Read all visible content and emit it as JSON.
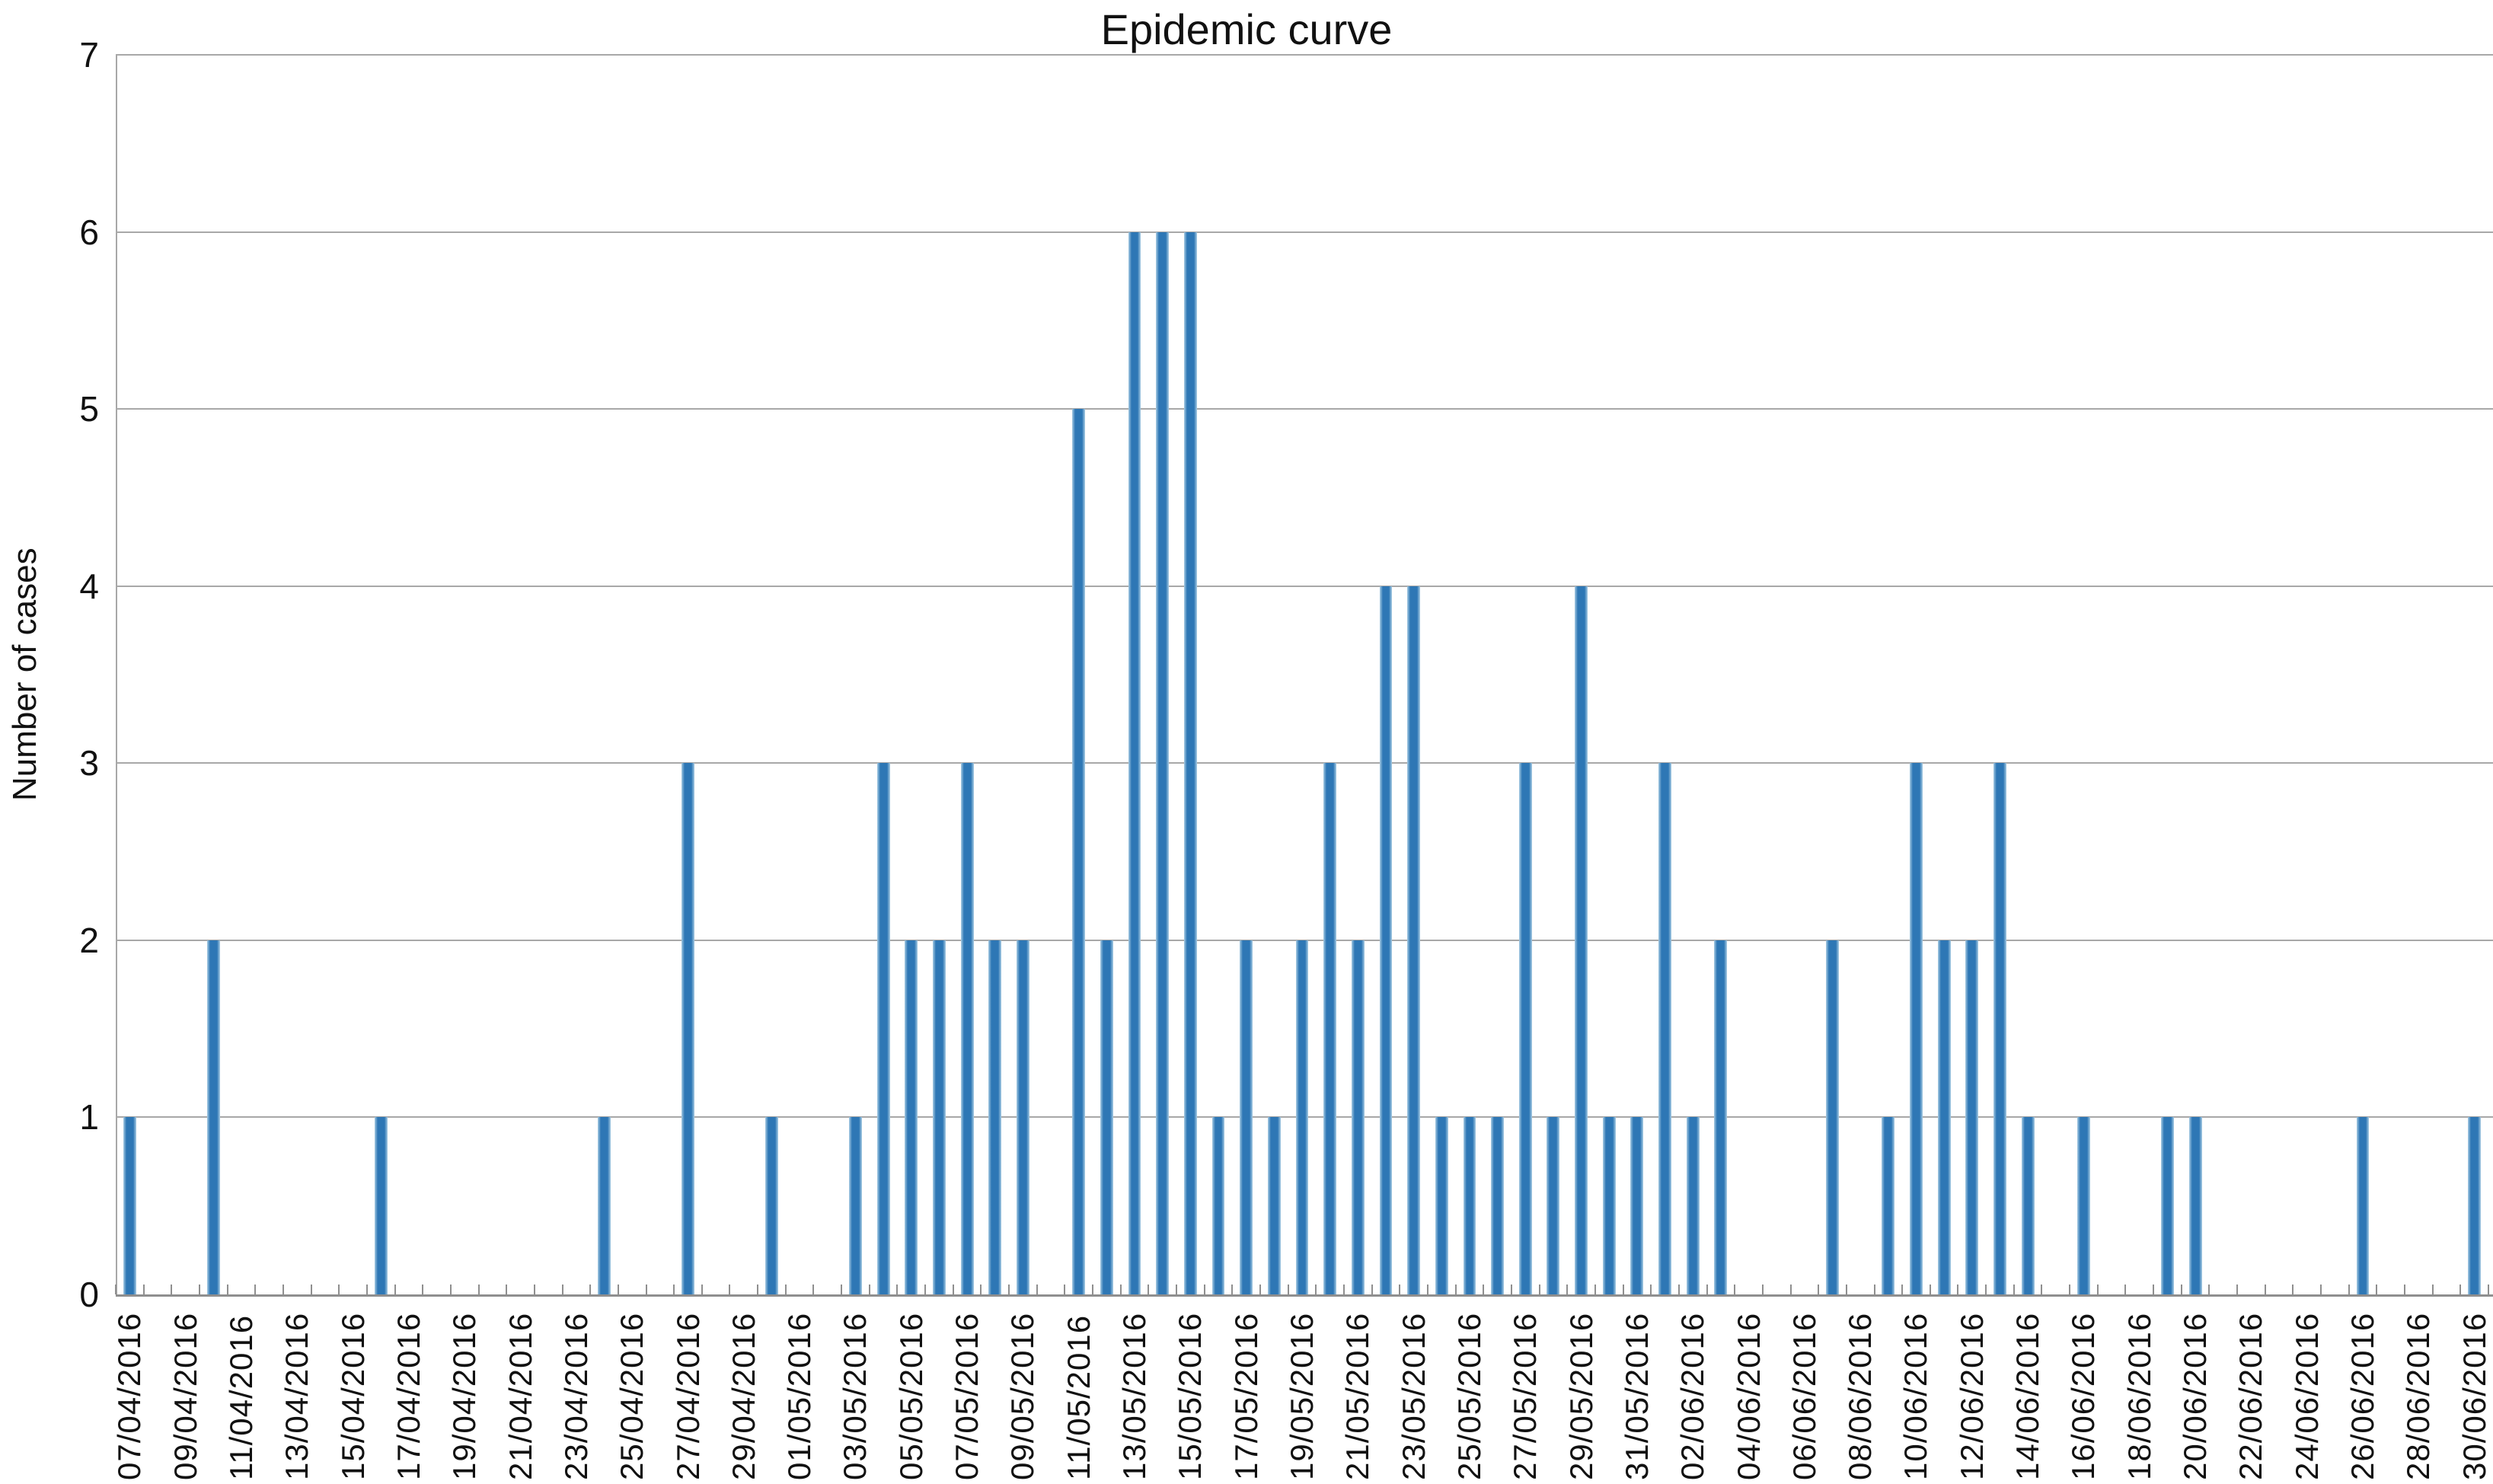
{
  "chart_data": {
    "type": "bar",
    "title": "Epidemic curve",
    "xlabel": "",
    "ylabel": "Number of cases",
    "ylim": [
      0,
      7
    ],
    "yticks": [
      0,
      1,
      2,
      3,
      4,
      5,
      6,
      7
    ],
    "grid": "horizontal",
    "legend": "none",
    "bar_color": "#2e77b5",
    "bar_edge_color": "#a8cce4",
    "gridline_color": "#a8a8a8",
    "axis_color": "#8f8f8f",
    "x_axis": {
      "start": "07/04/2016",
      "end": "30/06/2016",
      "step_days": 1,
      "label_every_days": 2,
      "total_slots": 85
    },
    "xticklabels": [
      "07/04/2016",
      "09/04/2016",
      "11/04/2016",
      "13/04/2016",
      "15/04/2016",
      "17/04/2016",
      "19/04/2016",
      "21/04/2016",
      "23/04/2016",
      "25/04/2016",
      "27/04/2016",
      "29/04/2016",
      "01/05/2016",
      "03/05/2016",
      "05/05/2016",
      "07/05/2016",
      "09/05/2016",
      "11/05/2016",
      "13/05/2016",
      "15/05/2016",
      "17/05/2016",
      "19/05/2016",
      "21/05/2016",
      "23/05/2016",
      "25/05/2016",
      "27/05/2016",
      "29/05/2016",
      "31/05/2016",
      "02/06/2016",
      "04/06/2016",
      "06/06/2016",
      "08/06/2016",
      "10/06/2016",
      "12/06/2016",
      "14/06/2016",
      "16/06/2016",
      "18/06/2016",
      "20/06/2016",
      "22/06/2016",
      "24/06/2016",
      "26/06/2016",
      "28/06/2016",
      "30/06/2016"
    ],
    "values": [
      {
        "date": "07/04/2016",
        "cases": 1
      },
      {
        "date": "10/04/2016",
        "cases": 2
      },
      {
        "date": "16/04/2016",
        "cases": 1
      },
      {
        "date": "24/04/2016",
        "cases": 1
      },
      {
        "date": "27/04/2016",
        "cases": 3
      },
      {
        "date": "30/04/2016",
        "cases": 1
      },
      {
        "date": "03/05/2016",
        "cases": 1
      },
      {
        "date": "04/05/2016",
        "cases": 3
      },
      {
        "date": "05/05/2016",
        "cases": 2
      },
      {
        "date": "06/05/2016",
        "cases": 2
      },
      {
        "date": "07/05/2016",
        "cases": 3
      },
      {
        "date": "08/05/2016",
        "cases": 2
      },
      {
        "date": "09/05/2016",
        "cases": 2
      },
      {
        "date": "11/05/2016",
        "cases": 5
      },
      {
        "date": "12/05/2016",
        "cases": 2
      },
      {
        "date": "13/05/2016",
        "cases": 6
      },
      {
        "date": "14/05/2016",
        "cases": 6
      },
      {
        "date": "15/05/2016",
        "cases": 6
      },
      {
        "date": "16/05/2016",
        "cases": 1
      },
      {
        "date": "17/05/2016",
        "cases": 2
      },
      {
        "date": "18/05/2016",
        "cases": 1
      },
      {
        "date": "19/05/2016",
        "cases": 2
      },
      {
        "date": "20/05/2016",
        "cases": 3
      },
      {
        "date": "21/05/2016",
        "cases": 2
      },
      {
        "date": "22/05/2016",
        "cases": 4
      },
      {
        "date": "23/05/2016",
        "cases": 4
      },
      {
        "date": "24/05/2016",
        "cases": 1
      },
      {
        "date": "25/05/2016",
        "cases": 1
      },
      {
        "date": "26/05/2016",
        "cases": 1
      },
      {
        "date": "27/05/2016",
        "cases": 3
      },
      {
        "date": "28/05/2016",
        "cases": 1
      },
      {
        "date": "29/05/2016",
        "cases": 4
      },
      {
        "date": "30/05/2016",
        "cases": 1
      },
      {
        "date": "31/05/2016",
        "cases": 1
      },
      {
        "date": "01/06/2016",
        "cases": 3
      },
      {
        "date": "02/06/2016",
        "cases": 1
      },
      {
        "date": "03/06/2016",
        "cases": 2
      },
      {
        "date": "07/06/2016",
        "cases": 2
      },
      {
        "date": "09/06/2016",
        "cases": 1
      },
      {
        "date": "10/06/2016",
        "cases": 3
      },
      {
        "date": "11/06/2016",
        "cases": 2
      },
      {
        "date": "12/06/2016",
        "cases": 2
      },
      {
        "date": "13/06/2016",
        "cases": 3
      },
      {
        "date": "14/06/2016",
        "cases": 1
      },
      {
        "date": "16/06/2016",
        "cases": 1
      },
      {
        "date": "19/06/2016",
        "cases": 1
      },
      {
        "date": "20/06/2016",
        "cases": 1
      },
      {
        "date": "26/06/2016",
        "cases": 1
      },
      {
        "date": "30/06/2016",
        "cases": 1
      }
    ]
  }
}
